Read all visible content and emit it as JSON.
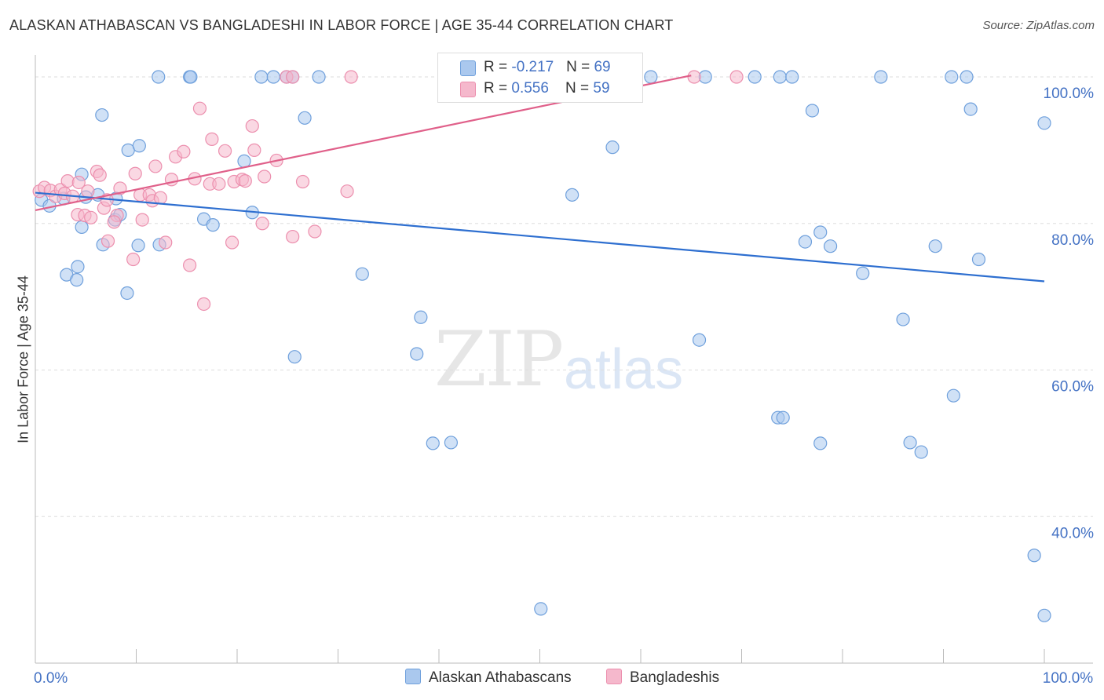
{
  "title": "ALASKAN ATHABASCAN VS BANGLADESHI IN LABOR FORCE | AGE 35-44 CORRELATION CHART",
  "source": "Source: ZipAtlas.com",
  "watermark": {
    "zip": "ZIP",
    "atlas": "atlas"
  },
  "legend": {
    "rows": [
      {
        "r_label": "R = ",
        "r_value": "-0.217",
        "n_label": "N = ",
        "n_value": "69"
      },
      {
        "r_label": "R = ",
        "r_value": "0.556",
        "n_label": "N = ",
        "n_value": "59"
      }
    ]
  },
  "bottom_legend": {
    "series1": "Alaskan Athabascans",
    "series2": "Bangladeshis"
  },
  "colors": {
    "blue_fill": "#aac8ee",
    "blue_stroke": "#6fa0dc",
    "blue_line": "#2e6fd0",
    "pink_fill": "#f5b8cc",
    "pink_stroke": "#ec8fae",
    "pink_line": "#e0608a",
    "axis_label": "#4472c4",
    "grid": "#dddddd"
  },
  "chart_data": {
    "type": "scatter",
    "title": "ALASKAN ATHABASCAN VS BANGLADESHI IN LABOR FORCE | AGE 35-44 CORRELATION CHART",
    "xlabel": "",
    "ylabel": "In Labor Force | Age 35-44",
    "xlim": [
      0,
      100
    ],
    "ylim": [
      20,
      103
    ],
    "x_tick_labels": [
      {
        "value": 0,
        "label": "0.0%"
      },
      {
        "value": 100,
        "label": "100.0%"
      }
    ],
    "y_tick_labels": [
      {
        "value": 100,
        "label": "100.0%"
      },
      {
        "value": 80,
        "label": "80.0%"
      },
      {
        "value": 60,
        "label": "60.0%"
      },
      {
        "value": 40,
        "label": "40.0%"
      }
    ],
    "series": [
      {
        "name": "Alaskan Athabascans",
        "color": "#aac8ee",
        "trend": {
          "x": [
            0,
            100
          ],
          "y": [
            84.2,
            72.1
          ]
        },
        "points": [
          [
            0.6,
            83.2
          ],
          [
            1.4,
            82.4
          ],
          [
            2.8,
            83.4
          ],
          [
            5.0,
            83.6
          ],
          [
            4.6,
            86.7
          ],
          [
            6.2,
            83.9
          ],
          [
            7.9,
            80.5
          ],
          [
            8.0,
            83.4
          ],
          [
            3.1,
            73.0
          ],
          [
            4.1,
            72.3
          ],
          [
            4.2,
            74.1
          ],
          [
            4.6,
            79.5
          ],
          [
            6.6,
            94.8
          ],
          [
            6.7,
            77.1
          ],
          [
            8.4,
            81.2
          ],
          [
            9.2,
            90.0
          ],
          [
            9.1,
            70.5
          ],
          [
            10.2,
            77.0
          ],
          [
            10.3,
            90.6
          ],
          [
            12.3,
            77.1
          ],
          [
            12.2,
            100
          ],
          [
            15.3,
            100
          ],
          [
            15.4,
            100
          ],
          [
            16.7,
            80.6
          ],
          [
            17.6,
            79.8
          ],
          [
            20.7,
            88.5
          ],
          [
            21.5,
            81.5
          ],
          [
            22.4,
            100
          ],
          [
            23.6,
            100
          ],
          [
            24.9,
            100
          ],
          [
            25.5,
            100
          ],
          [
            25.7,
            61.8
          ],
          [
            26.7,
            94.4
          ],
          [
            28.1,
            100
          ],
          [
            32.4,
            73.1
          ],
          [
            37.8,
            62.2
          ],
          [
            38.2,
            67.2
          ],
          [
            39.4,
            50.0
          ],
          [
            41.2,
            50.1
          ],
          [
            50.1,
            27.4
          ],
          [
            53.2,
            83.9
          ],
          [
            57.2,
            90.4
          ],
          [
            61.0,
            100
          ],
          [
            65.8,
            64.1
          ],
          [
            66.4,
            100
          ],
          [
            71.3,
            100
          ],
          [
            76.3,
            77.5
          ],
          [
            77.8,
            50.0
          ],
          [
            73.6,
            53.5
          ],
          [
            74.1,
            53.5
          ],
          [
            73.8,
            100
          ],
          [
            75.0,
            100
          ],
          [
            77.0,
            95.4
          ],
          [
            77.8,
            78.8
          ],
          [
            78.8,
            76.9
          ],
          [
            82.0,
            73.2
          ],
          [
            83.8,
            100
          ],
          [
            86.0,
            66.9
          ],
          [
            86.7,
            50.1
          ],
          [
            87.8,
            48.8
          ],
          [
            89.2,
            76.9
          ],
          [
            90.8,
            100
          ],
          [
            91.0,
            56.5
          ],
          [
            92.3,
            100
          ],
          [
            92.7,
            95.6
          ],
          [
            93.5,
            75.1
          ],
          [
            100.0,
            93.7
          ],
          [
            100.0,
            26.5
          ],
          [
            99.0,
            34.7
          ]
        ]
      },
      {
        "name": "Bangladeshis",
        "color": "#f5b8cc",
        "trend": {
          "x": [
            0,
            65
          ],
          "y": [
            81.8,
            100.2
          ]
        },
        "points": [
          [
            0.4,
            84.4
          ],
          [
            0.9,
            84.9
          ],
          [
            1.5,
            84.5
          ],
          [
            2.0,
            83.7
          ],
          [
            2.5,
            84.6
          ],
          [
            2.9,
            84.1
          ],
          [
            3.2,
            85.8
          ],
          [
            3.7,
            83.7
          ],
          [
            4.2,
            81.2
          ],
          [
            4.3,
            85.6
          ],
          [
            4.9,
            81.1
          ],
          [
            5.2,
            84.4
          ],
          [
            5.5,
            80.8
          ],
          [
            6.1,
            87.1
          ],
          [
            6.4,
            86.6
          ],
          [
            6.8,
            82.1
          ],
          [
            7.1,
            83.2
          ],
          [
            7.2,
            77.6
          ],
          [
            8.1,
            81.1
          ],
          [
            7.8,
            80.2
          ],
          [
            8.4,
            84.8
          ],
          [
            9.7,
            75.1
          ],
          [
            9.9,
            86.8
          ],
          [
            10.4,
            83.9
          ],
          [
            10.6,
            80.5
          ],
          [
            11.3,
            83.9
          ],
          [
            11.6,
            83.1
          ],
          [
            11.9,
            87.8
          ],
          [
            12.4,
            83.5
          ],
          [
            12.9,
            77.4
          ],
          [
            13.5,
            86.0
          ],
          [
            13.9,
            89.1
          ],
          [
            14.7,
            89.8
          ],
          [
            15.3,
            74.3
          ],
          [
            15.8,
            86.1
          ],
          [
            16.3,
            95.7
          ],
          [
            16.7,
            69.0
          ],
          [
            17.3,
            85.4
          ],
          [
            17.5,
            91.5
          ],
          [
            18.2,
            85.4
          ],
          [
            18.8,
            89.9
          ],
          [
            19.5,
            77.4
          ],
          [
            19.7,
            85.7
          ],
          [
            20.5,
            86.0
          ],
          [
            20.8,
            85.8
          ],
          [
            21.5,
            93.3
          ],
          [
            21.7,
            90.0
          ],
          [
            22.5,
            80.0
          ],
          [
            22.7,
            86.4
          ],
          [
            23.9,
            88.6
          ],
          [
            24.9,
            100
          ],
          [
            25.5,
            100
          ],
          [
            25.5,
            78.2
          ],
          [
            26.5,
            85.7
          ],
          [
            27.7,
            78.9
          ],
          [
            31.3,
            100
          ],
          [
            30.9,
            84.4
          ],
          [
            65.3,
            100
          ],
          [
            69.5,
            100
          ]
        ]
      }
    ]
  }
}
